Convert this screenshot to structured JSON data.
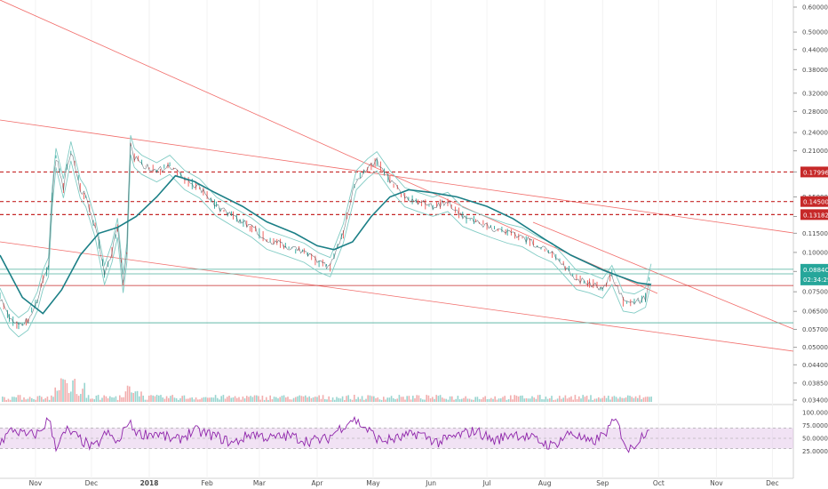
{
  "chart_data": [
    {
      "type": "line",
      "title": "",
      "scale": "log",
      "x_months": [
        "Nov",
        "Dec",
        "2018",
        "Feb",
        "Mar",
        "Apr",
        "May",
        "Jun",
        "Jul",
        "Aug",
        "Sep",
        "Oct",
        "Nov",
        "Dec"
      ],
      "y_ticks": [
        "0.60000",
        "0.50000",
        "0.44000",
        "0.38000",
        "0.32000",
        "0.28000",
        "0.24000",
        "0.21000",
        "0.18000",
        "0.15000",
        "0.13000",
        "0.11500",
        "0.10000",
        "0.08700",
        "0.07500",
        "0.06500",
        "0.05700",
        "0.05000",
        "0.04400",
        "0.03850",
        "0.03400"
      ],
      "ylim": [
        0.034,
        0.6
      ],
      "price_series": {
        "name": "",
        "dates": [
          "2017-10-13",
          "2017-10-18",
          "2017-10-23",
          "2017-10-28",
          "2017-11-02",
          "2017-11-05",
          "2017-11-08",
          "2017-11-10",
          "2017-11-12",
          "2017-11-16",
          "2017-11-20",
          "2017-11-25",
          "2017-11-28",
          "2017-12-03",
          "2017-12-08",
          "2017-12-12",
          "2017-12-15",
          "2017-12-18",
          "2017-12-20",
          "2017-12-22",
          "2017-12-24",
          "2017-12-28",
          "2018-01-05",
          "2018-01-12",
          "2018-01-20",
          "2018-01-28",
          "2018-02-06",
          "2018-02-15",
          "2018-02-25",
          "2018-03-05",
          "2018-03-15",
          "2018-03-25",
          "2018-04-02",
          "2018-04-08",
          "2018-04-15",
          "2018-04-22",
          "2018-04-28",
          "2018-05-03",
          "2018-05-10",
          "2018-05-18",
          "2018-05-25",
          "2018-06-02",
          "2018-06-10",
          "2018-06-18",
          "2018-06-25",
          "2018-07-03",
          "2018-07-12",
          "2018-07-20",
          "2018-07-28",
          "2018-08-05",
          "2018-08-12",
          "2018-08-18",
          "2018-08-25",
          "2018-09-01",
          "2018-09-06",
          "2018-09-12",
          "2018-09-18",
          "2018-09-24",
          "2018-09-27"
        ],
        "values": [
          0.072,
          0.062,
          0.058,
          0.061,
          0.07,
          0.082,
          0.09,
          0.15,
          0.2,
          0.16,
          0.21,
          0.16,
          0.15,
          0.12,
          0.085,
          0.1,
          0.12,
          0.08,
          0.1,
          0.22,
          0.2,
          0.19,
          0.18,
          0.19,
          0.17,
          0.16,
          0.14,
          0.13,
          0.12,
          0.11,
          0.105,
          0.1,
          0.093,
          0.09,
          0.115,
          0.17,
          0.185,
          0.195,
          0.17,
          0.15,
          0.145,
          0.14,
          0.145,
          0.13,
          0.125,
          0.12,
          0.115,
          0.112,
          0.105,
          0.1,
          0.09,
          0.082,
          0.08,
          0.077,
          0.085,
          0.07,
          0.069,
          0.072,
          0.086
        ]
      },
      "moving_average": {
        "name": "",
        "dates": [
          "2017-10-13",
          "2017-10-25",
          "2017-11-05",
          "2017-11-15",
          "2017-11-25",
          "2017-12-05",
          "2017-12-15",
          "2017-12-25",
          "2018-01-05",
          "2018-01-15",
          "2018-01-25",
          "2018-02-05",
          "2018-02-20",
          "2018-03-05",
          "2018-03-20",
          "2018-04-01",
          "2018-04-10",
          "2018-04-20",
          "2018-04-30",
          "2018-05-10",
          "2018-05-20",
          "2018-06-01",
          "2018-06-15",
          "2018-07-01",
          "2018-07-15",
          "2018-08-01",
          "2018-08-15",
          "2018-09-01",
          "2018-09-10",
          "2018-09-20",
          "2018-09-27"
        ],
        "values": [
          0.098,
          0.072,
          0.064,
          0.076,
          0.098,
          0.115,
          0.12,
          0.13,
          0.15,
          0.175,
          0.168,
          0.155,
          0.14,
          0.125,
          0.115,
          0.105,
          0.102,
          0.108,
          0.13,
          0.15,
          0.158,
          0.155,
          0.15,
          0.14,
          0.128,
          0.11,
          0.098,
          0.088,
          0.084,
          0.08,
          0.079
        ]
      },
      "horizontal_levels": [
        {
          "value": 0.17996,
          "label": "0.17996",
          "color": "#c62828",
          "style": "dashed"
        },
        {
          "value": 0.145,
          "label": "0.14500",
          "color": "#c62828",
          "style": "dashed"
        },
        {
          "value": 0.13182,
          "label": "0.13182",
          "color": "#c62828",
          "style": "dashed"
        },
        {
          "value": 0.0884,
          "label": "0.0884O",
          "color": "#4caf9e",
          "style": "solid"
        },
        {
          "value": 0.0855,
          "label": "",
          "color": "#4caf9e",
          "style": "solid"
        },
        {
          "value": 0.0785,
          "label": "",
          "color": "#c62828",
          "style": "solid"
        },
        {
          "value": 0.0598,
          "label": "",
          "color": "#4caf9e",
          "style": "solid"
        }
      ],
      "current_price_tag": {
        "value": "0.0884O",
        "countdown": "02:34:29",
        "color": "#26a69a"
      },
      "trendlines_color": "#ef5350",
      "grid": true
    },
    {
      "type": "line",
      "title": "",
      "y_ticks": [
        "100.0000",
        "75.0000",
        "50.0000",
        "25.0000"
      ],
      "ylim": [
        0,
        100
      ],
      "band": [
        30,
        70
      ],
      "band_color": "#e1bee7",
      "line_color": "#8e24aa",
      "series": {
        "name": "",
        "dates": [
          "2017-10-13",
          "2017-10-20",
          "2017-10-27",
          "2017-11-03",
          "2017-11-08",
          "2017-11-12",
          "2017-11-18",
          "2017-11-25",
          "2017-12-02",
          "2017-12-09",
          "2017-12-16",
          "2017-12-20",
          "2017-12-27",
          "2018-01-05",
          "2018-01-15",
          "2018-01-25",
          "2018-02-05",
          "2018-02-15",
          "2018-02-25",
          "2018-03-07",
          "2018-03-17",
          "2018-03-27",
          "2018-04-06",
          "2018-04-14",
          "2018-04-20",
          "2018-04-27",
          "2018-05-05",
          "2018-05-15",
          "2018-05-25",
          "2018-06-05",
          "2018-06-15",
          "2018-06-25",
          "2018-07-05",
          "2018-07-15",
          "2018-07-25",
          "2018-08-05",
          "2018-08-15",
          "2018-08-25",
          "2018-09-01",
          "2018-09-08",
          "2018-09-15",
          "2018-09-22",
          "2018-09-27"
        ],
        "values": [
          42,
          68,
          55,
          60,
          88,
          35,
          65,
          48,
          30,
          60,
          40,
          82,
          58,
          60,
          45,
          65,
          55,
          40,
          60,
          50,
          55,
          45,
          48,
          72,
          88,
          70,
          45,
          50,
          60,
          42,
          55,
          65,
          45,
          60,
          50,
          35,
          62,
          40,
          55,
          85,
          25,
          55,
          78
        ]
      }
    }
  ]
}
